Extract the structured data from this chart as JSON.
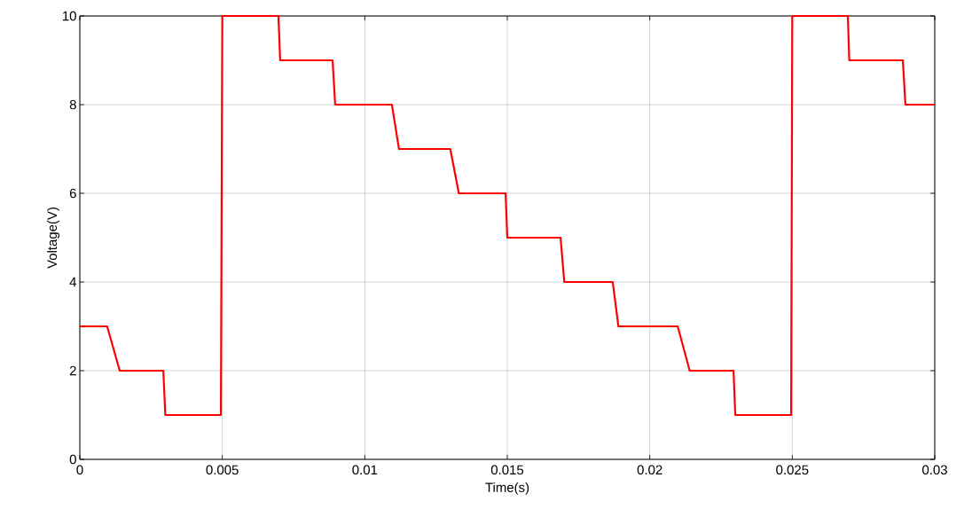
{
  "chart_data": {
    "type": "line",
    "xlabel": "Time(s)",
    "ylabel": "Voltage(V)",
    "xlim": [
      0,
      0.03
    ],
    "ylim": [
      0,
      10
    ],
    "xticks": [
      0,
      0.005,
      0.01,
      0.015,
      0.02,
      0.025,
      0.03
    ],
    "yticks": [
      0,
      2,
      4,
      6,
      8,
      10
    ],
    "grid": true,
    "series": [
      {
        "color": "#ff0000",
        "x": [
          0,
          0.00096,
          0.0014,
          0.00293,
          0.003,
          0.00495,
          0.005,
          0.00697,
          0.00703,
          0.00887,
          0.00896,
          0.01095,
          0.0112,
          0.013,
          0.0133,
          0.01494,
          0.015,
          0.01687,
          0.017,
          0.0187,
          0.0189,
          0.02098,
          0.0214,
          0.02294,
          0.023,
          0.02496,
          0.025,
          0.02695,
          0.027,
          0.02888,
          0.02897,
          0.03
        ],
        "values": [
          3,
          3,
          2,
          2,
          1,
          1,
          10,
          10,
          9,
          9,
          8,
          8,
          7,
          7,
          6,
          6,
          5,
          5,
          4,
          4,
          3,
          3,
          2,
          2,
          1,
          1,
          10,
          10,
          9,
          9,
          8,
          8
        ]
      }
    ]
  }
}
